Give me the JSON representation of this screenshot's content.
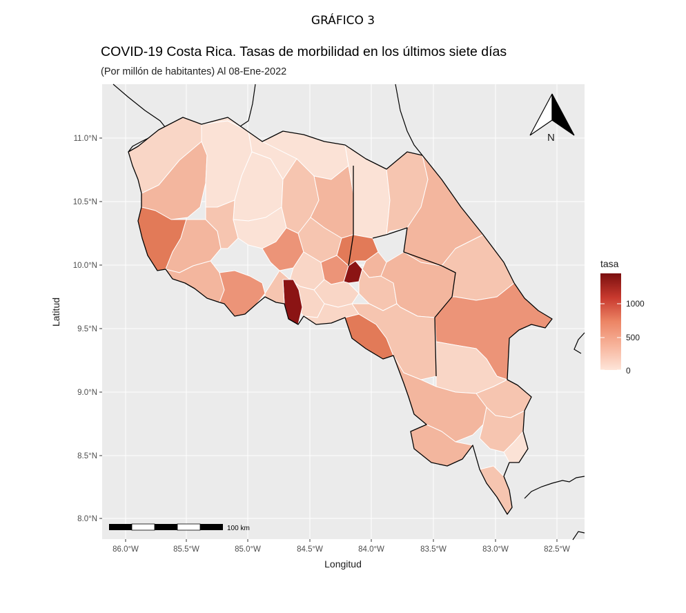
{
  "figure_header": "GRÁFICO 3",
  "title": "COVID-19 Costa Rica. Tasas de morbilidad en los últimos siete días",
  "subtitle": "(Por millón de habitantes) Al 08-Ene-2022",
  "axes": {
    "x_label": "Longitud",
    "y_label": "Latitud",
    "x_ticks": [
      "86.0°W",
      "85.5°W",
      "85.0°W",
      "84.5°W",
      "84.0°W",
      "83.5°W",
      "83.0°W",
      "82.5°W"
    ],
    "y_ticks": [
      "11.0°N",
      "10.5°N",
      "10.0°N",
      "9.5°N",
      "9.0°N",
      "8.5°N",
      "8.0°N"
    ]
  },
  "legend": {
    "title": "tasa",
    "ticks": [
      "1000",
      "500",
      "0"
    ],
    "colors": [
      "#fee0d2",
      "#f4a582",
      "#e0634a",
      "#b2221f",
      "#7a0f0f"
    ]
  },
  "north_arrow": {
    "label": "N"
  },
  "scale_bar": {
    "label": "100 km"
  },
  "colors": {
    "panel": "#ebebeb",
    "grid": "#ffffff",
    "border": "#000000",
    "highlight": "#8b1414"
  }
}
